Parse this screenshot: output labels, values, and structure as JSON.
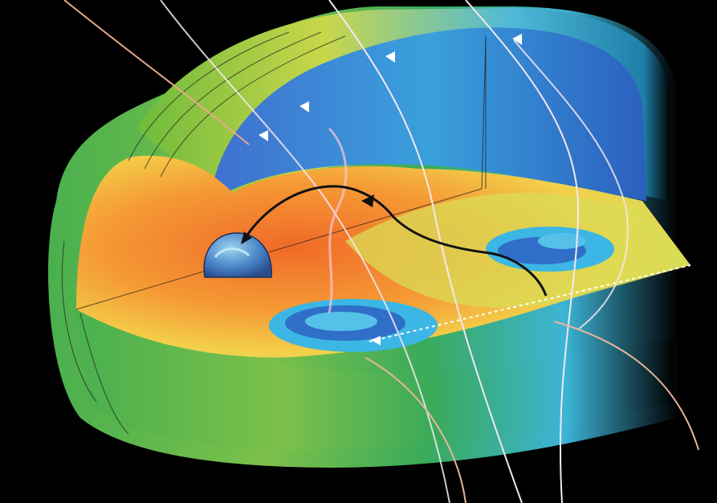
{
  "image": {
    "caption": "",
    "colors": {
      "background": "#000000",
      "magnetosheath_green": "#3fae4a",
      "magnetosphere_blue": "#2f5fbf",
      "plasma_sheet_orange": "#f07a2a",
      "plasma_sheet_yellow": "#e8d84a",
      "reconnection_cyan": "#39b4e6",
      "field_line_white": "#f2e6f0",
      "field_line_peach": "#e8a888",
      "trajectory_black": "#111111",
      "earth_blue": "#3a6fb8"
    },
    "elements": [
      "earth-sphere",
      "magnetopause-shell",
      "plasma-sheet",
      "magnetic-field-lines",
      "particle-trajectory",
      "reconnection-vortices",
      "current-sheet-line"
    ]
  }
}
